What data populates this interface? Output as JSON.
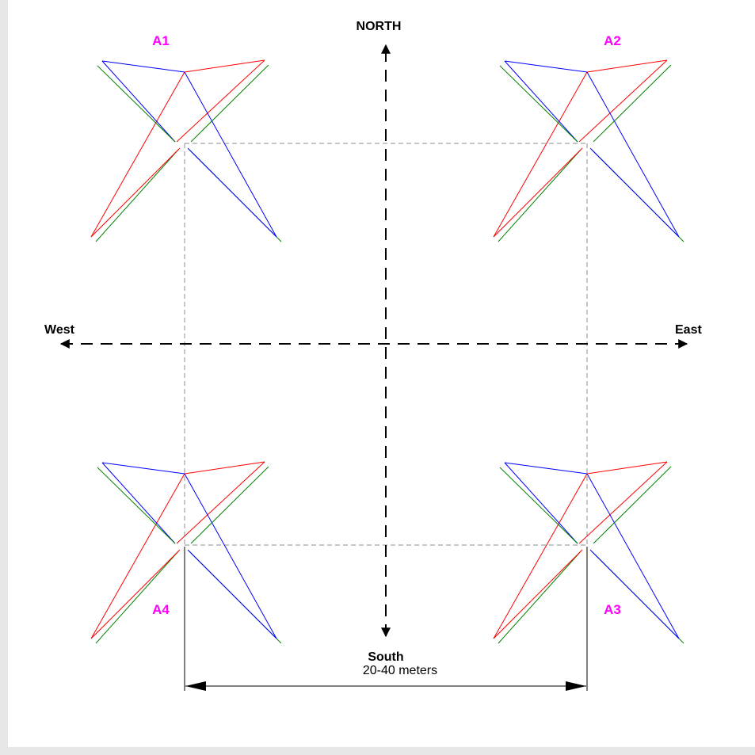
{
  "diagram": {
    "compass": {
      "north": "NORTH",
      "south": "South",
      "east": "East",
      "west": "West"
    },
    "towers": [
      {
        "id": "A1"
      },
      {
        "id": "A2"
      },
      {
        "id": "A3"
      },
      {
        "id": "A4"
      }
    ],
    "dimension": {
      "label": "20-40 meters"
    },
    "colors": {
      "tower_label": "#ff00ff",
      "antenna_red": "#ff0000",
      "antenna_blue": "#0000ff",
      "antenna_green": "#008000",
      "guide_line": "#8c8c8c",
      "axis": "#000000"
    }
  }
}
